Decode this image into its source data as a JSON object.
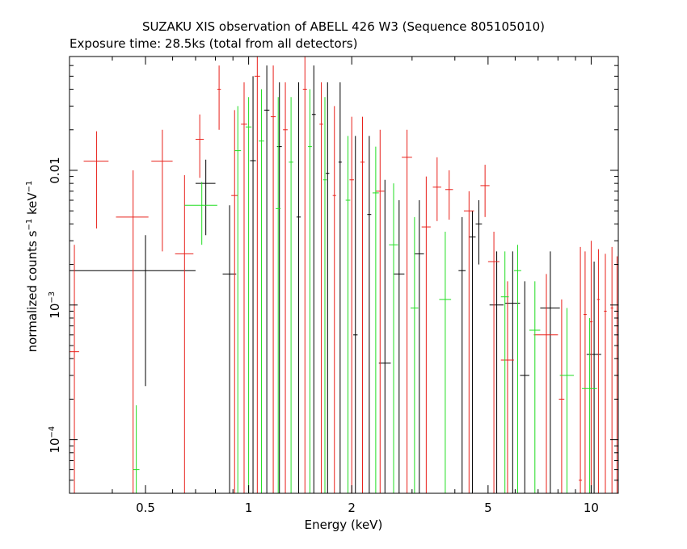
{
  "chart_data": {
    "type": "scatter",
    "title": "SUZAKU XIS observation of ABELL 426 W3 (Sequence 805105010)",
    "subtitle": "Exposure time: 28.5ks (total from all detectors)",
    "xlabel": "Energy (keV)",
    "ylabel_main": "normalized counts s",
    "ylabel_exp1": "−1",
    "ylabel_mid": " keV",
    "ylabel_exp2": "−1",
    "xscale": "log",
    "yscale": "log",
    "xlim": [
      0.3,
      12
    ],
    "ylim": [
      4e-05,
      0.07
    ],
    "grid": false,
    "x_ticks": [
      {
        "value": 0.5,
        "label": "0.5"
      },
      {
        "value": 1,
        "label": "1"
      },
      {
        "value": 2,
        "label": "2"
      },
      {
        "value": 5,
        "label": "5"
      },
      {
        "value": 10,
        "label": "10"
      }
    ],
    "y_ticks": [
      {
        "value": 0.0001,
        "base": "10",
        "exp": "−4"
      },
      {
        "value": 0.001,
        "base": "10",
        "exp": "−3"
      },
      {
        "value": 0.01,
        "base": "0.01",
        "exp": ""
      }
    ],
    "series": [
      {
        "color": "#000000",
        "points": [
          {
            "x": 0.5,
            "xlo": 0.3,
            "xhi": 0.7,
            "y": 0.0018,
            "ylo": 0.00025,
            "yhi": 0.0033
          },
          {
            "x": 0.75,
            "xlo": 0.7,
            "xhi": 0.8,
            "y": 0.008,
            "ylo": 0.0033,
            "yhi": 0.012
          },
          {
            "x": 0.88,
            "xlo": 0.84,
            "xhi": 0.92,
            "y": 0.0017,
            "ylo": 4e-05,
            "yhi": 0.0055
          },
          {
            "x": 1.03,
            "xlo": 1.01,
            "xhi": 1.05,
            "y": 0.0118,
            "ylo": 4e-05,
            "yhi": 0.05
          },
          {
            "x": 1.13,
            "xlo": 1.11,
            "xhi": 1.15,
            "y": 0.028,
            "ylo": 4e-05,
            "yhi": 0.06
          },
          {
            "x": 1.23,
            "xlo": 1.21,
            "xhi": 1.25,
            "y": 0.015,
            "ylo": 4e-05,
            "yhi": 0.045
          },
          {
            "x": 1.4,
            "xlo": 1.38,
            "xhi": 1.42,
            "y": 0.0045,
            "ylo": 4e-05,
            "yhi": 0.045
          },
          {
            "x": 1.55,
            "xlo": 1.53,
            "xhi": 1.57,
            "y": 0.026,
            "ylo": 4e-05,
            "yhi": 0.06
          },
          {
            "x": 1.7,
            "xlo": 1.68,
            "xhi": 1.72,
            "y": 0.0095,
            "ylo": 4e-05,
            "yhi": 0.045
          },
          {
            "x": 1.85,
            "xlo": 1.83,
            "xhi": 1.87,
            "y": 0.0115,
            "ylo": 4e-05,
            "yhi": 0.045
          },
          {
            "x": 2.05,
            "xlo": 2.02,
            "xhi": 2.08,
            "y": 0.0006,
            "ylo": 4e-05,
            "yhi": 0.018
          },
          {
            "x": 2.25,
            "xlo": 2.22,
            "xhi": 2.28,
            "y": 0.0047,
            "ylo": 4e-05,
            "yhi": 0.018
          },
          {
            "x": 2.5,
            "xlo": 2.4,
            "xhi": 2.6,
            "y": 0.00037,
            "ylo": 4e-05,
            "yhi": 0.0085
          },
          {
            "x": 2.75,
            "xlo": 2.65,
            "xhi": 2.85,
            "y": 0.0017,
            "ylo": 4e-05,
            "yhi": 0.006
          },
          {
            "x": 3.15,
            "xlo": 3.05,
            "xhi": 3.25,
            "y": 0.0024,
            "ylo": 4e-05,
            "yhi": 0.006
          },
          {
            "x": 4.2,
            "xlo": 4.1,
            "xhi": 4.3,
            "y": 0.0018,
            "ylo": 4e-05,
            "yhi": 0.0045
          },
          {
            "x": 4.5,
            "xlo": 4.4,
            "xhi": 4.6,
            "y": 0.0032,
            "ylo": 4e-05,
            "yhi": 0.005
          },
          {
            "x": 4.7,
            "xlo": 4.6,
            "xhi": 4.8,
            "y": 0.004,
            "ylo": 0.002,
            "yhi": 0.006
          },
          {
            "x": 5.3,
            "xlo": 5.05,
            "xhi": 5.55,
            "y": 0.001,
            "ylo": 4e-05,
            "yhi": 0.0025
          },
          {
            "x": 5.9,
            "xlo": 5.6,
            "xhi": 6.2,
            "y": 0.00103,
            "ylo": 4e-05,
            "yhi": 0.0025
          },
          {
            "x": 6.4,
            "xlo": 6.2,
            "xhi": 6.6,
            "y": 0.0003,
            "ylo": 4e-05,
            "yhi": 0.0015
          },
          {
            "x": 7.6,
            "xlo": 7.1,
            "xhi": 8.1,
            "y": 0.00095,
            "ylo": 4e-05,
            "yhi": 0.0025
          },
          {
            "x": 10.2,
            "xlo": 9.7,
            "xhi": 10.7,
            "y": 0.00043,
            "ylo": 4e-05,
            "yhi": 0.0021
          }
        ]
      },
      {
        "color": "#e8201a",
        "points": [
          {
            "x": 0.31,
            "xlo": 0.3,
            "xhi": 0.32,
            "y": 0.00045,
            "ylo": 4e-05,
            "yhi": 0.0028
          },
          {
            "x": 0.36,
            "xlo": 0.33,
            "xhi": 0.39,
            "y": 0.0117,
            "ylo": 0.0037,
            "yhi": 0.0195
          },
          {
            "x": 0.46,
            "xlo": 0.41,
            "xhi": 0.51,
            "y": 0.0045,
            "ylo": 4e-05,
            "yhi": 0.01
          },
          {
            "x": 0.56,
            "xlo": 0.52,
            "xhi": 0.6,
            "y": 0.0117,
            "ylo": 0.0025,
            "yhi": 0.02
          },
          {
            "x": 0.65,
            "xlo": 0.61,
            "xhi": 0.69,
            "y": 0.0024,
            "ylo": 4e-05,
            "yhi": 0.0092
          },
          {
            "x": 0.72,
            "xlo": 0.7,
            "xhi": 0.74,
            "y": 0.017,
            "ylo": 0.0088,
            "yhi": 0.026
          },
          {
            "x": 0.82,
            "xlo": 0.81,
            "xhi": 0.83,
            "y": 0.04,
            "ylo": 0.02,
            "yhi": 0.06
          },
          {
            "x": 0.91,
            "xlo": 0.89,
            "xhi": 0.93,
            "y": 0.0065,
            "ylo": 4e-05,
            "yhi": 0.028
          },
          {
            "x": 0.97,
            "xlo": 0.95,
            "xhi": 0.99,
            "y": 0.022,
            "ylo": 4e-05,
            "yhi": 0.045
          },
          {
            "x": 1.06,
            "xlo": 1.04,
            "xhi": 1.08,
            "y": 0.05,
            "ylo": 4e-05,
            "yhi": 0.07
          },
          {
            "x": 1.18,
            "xlo": 1.16,
            "xhi": 1.2,
            "y": 0.025,
            "ylo": 4e-05,
            "yhi": 0.06
          },
          {
            "x": 1.28,
            "xlo": 1.26,
            "xhi": 1.3,
            "y": 0.02,
            "ylo": 4e-05,
            "yhi": 0.045
          },
          {
            "x": 1.46,
            "xlo": 1.44,
            "xhi": 1.48,
            "y": 0.04,
            "ylo": 4e-05,
            "yhi": 0.07
          },
          {
            "x": 1.63,
            "xlo": 1.61,
            "xhi": 1.65,
            "y": 0.022,
            "ylo": 4e-05,
            "yhi": 0.045
          },
          {
            "x": 1.78,
            "xlo": 1.76,
            "xhi": 1.8,
            "y": 0.0065,
            "ylo": 4e-05,
            "yhi": 0.03
          },
          {
            "x": 2.0,
            "xlo": 1.97,
            "xhi": 2.03,
            "y": 0.0085,
            "ylo": 4e-05,
            "yhi": 0.025
          },
          {
            "x": 2.15,
            "xlo": 2.12,
            "xhi": 2.18,
            "y": 0.0115,
            "ylo": 4e-05,
            "yhi": 0.025
          },
          {
            "x": 2.42,
            "xlo": 2.35,
            "xhi": 2.49,
            "y": 0.007,
            "ylo": 4e-05,
            "yhi": 0.02
          },
          {
            "x": 2.9,
            "xlo": 2.8,
            "xhi": 3.0,
            "y": 0.0125,
            "ylo": 4e-05,
            "yhi": 0.02
          },
          {
            "x": 3.3,
            "xlo": 3.2,
            "xhi": 3.4,
            "y": 0.0038,
            "ylo": 4e-05,
            "yhi": 0.009
          },
          {
            "x": 3.55,
            "xlo": 3.45,
            "xhi": 3.65,
            "y": 0.0075,
            "ylo": 0.0042,
            "yhi": 0.0125
          },
          {
            "x": 3.85,
            "xlo": 3.75,
            "xhi": 3.95,
            "y": 0.0072,
            "ylo": 0.0043,
            "yhi": 0.01
          },
          {
            "x": 4.4,
            "xlo": 4.25,
            "xhi": 4.55,
            "y": 0.005,
            "ylo": 4e-05,
            "yhi": 0.007
          },
          {
            "x": 4.9,
            "xlo": 4.75,
            "xhi": 5.05,
            "y": 0.0077,
            "ylo": 0.0045,
            "yhi": 0.011
          },
          {
            "x": 5.2,
            "xlo": 5.0,
            "xhi": 5.4,
            "y": 0.0021,
            "ylo": 4e-05,
            "yhi": 0.0035
          },
          {
            "x": 5.7,
            "xlo": 5.45,
            "xhi": 5.95,
            "y": 0.00039,
            "ylo": 4e-05,
            "yhi": 0.0015
          },
          {
            "x": 7.4,
            "xlo": 6.8,
            "xhi": 8.0,
            "y": 0.0006,
            "ylo": 4e-05,
            "yhi": 0.0017
          },
          {
            "x": 8.2,
            "xlo": 8.05,
            "xhi": 8.35,
            "y": 0.0002,
            "ylo": 4e-05,
            "yhi": 0.0011
          },
          {
            "x": 9.3,
            "xlo": 9.2,
            "xhi": 9.4,
            "y": 5e-05,
            "ylo": 4e-05,
            "yhi": 0.0027
          },
          {
            "x": 9.6,
            "xlo": 9.5,
            "xhi": 9.7,
            "y": 0.00085,
            "ylo": 4e-05,
            "yhi": 0.0025
          },
          {
            "x": 10.0,
            "xlo": 9.9,
            "xhi": 10.1,
            "y": 0.00075,
            "ylo": 4e-05,
            "yhi": 0.003
          },
          {
            "x": 10.5,
            "xlo": 10.4,
            "xhi": 10.6,
            "y": 0.0011,
            "ylo": 4e-05,
            "yhi": 0.0026
          },
          {
            "x": 11.0,
            "xlo": 10.9,
            "xhi": 11.1,
            "y": 0.0009,
            "ylo": 4e-05,
            "yhi": 0.0024
          },
          {
            "x": 11.5,
            "xlo": 11.4,
            "xhi": 11.6,
            "y": 0.00095,
            "ylo": 4e-05,
            "yhi": 0.0027
          },
          {
            "x": 11.9,
            "xlo": 11.85,
            "xhi": 11.95,
            "y": 0.0007,
            "ylo": 4e-05,
            "yhi": 0.0023
          }
        ]
      },
      {
        "color": "#22dd22",
        "points": [
          {
            "x": 0.47,
            "xlo": 0.46,
            "xhi": 0.48,
            "y": 6e-05,
            "ylo": 4e-05,
            "yhi": 0.00018
          },
          {
            "x": 0.73,
            "xlo": 0.65,
            "xhi": 0.81,
            "y": 0.0055,
            "ylo": 0.0028,
            "yhi": 0.0082
          },
          {
            "x": 0.93,
            "xlo": 0.91,
            "xhi": 0.95,
            "y": 0.014,
            "ylo": 4e-05,
            "yhi": 0.03
          },
          {
            "x": 1.0,
            "xlo": 0.98,
            "xhi": 1.02,
            "y": 0.021,
            "ylo": 4e-05,
            "yhi": 0.035
          },
          {
            "x": 1.09,
            "xlo": 1.07,
            "xhi": 1.11,
            "y": 0.0165,
            "ylo": 4e-05,
            "yhi": 0.04
          },
          {
            "x": 1.22,
            "xlo": 1.2,
            "xhi": 1.24,
            "y": 0.0052,
            "ylo": 4e-05,
            "yhi": 0.035
          },
          {
            "x": 1.33,
            "xlo": 1.31,
            "xhi": 1.35,
            "y": 0.0115,
            "ylo": 4e-05,
            "yhi": 0.035
          },
          {
            "x": 1.51,
            "xlo": 1.49,
            "xhi": 1.53,
            "y": 0.015,
            "ylo": 4e-05,
            "yhi": 0.04
          },
          {
            "x": 1.67,
            "xlo": 1.65,
            "xhi": 1.69,
            "y": 0.0085,
            "ylo": 4e-05,
            "yhi": 0.035
          },
          {
            "x": 1.95,
            "xlo": 1.92,
            "xhi": 1.98,
            "y": 0.006,
            "ylo": 4e-05,
            "yhi": 0.018
          },
          {
            "x": 2.35,
            "xlo": 2.3,
            "xhi": 2.4,
            "y": 0.0068,
            "ylo": 4e-05,
            "yhi": 0.015
          },
          {
            "x": 2.65,
            "xlo": 2.57,
            "xhi": 2.73,
            "y": 0.0028,
            "ylo": 4e-05,
            "yhi": 0.008
          },
          {
            "x": 3.05,
            "xlo": 2.97,
            "xhi": 3.13,
            "y": 0.00095,
            "ylo": 4e-05,
            "yhi": 0.0045
          },
          {
            "x": 3.75,
            "xlo": 3.6,
            "xhi": 3.9,
            "y": 0.0011,
            "ylo": 4e-05,
            "yhi": 0.0035
          },
          {
            "x": 5.6,
            "xlo": 5.45,
            "xhi": 5.75,
            "y": 0.00115,
            "ylo": 4e-05,
            "yhi": 0.0025
          },
          {
            "x": 6.1,
            "xlo": 5.95,
            "xhi": 6.25,
            "y": 0.0018,
            "ylo": 4e-05,
            "yhi": 0.0028
          },
          {
            "x": 6.85,
            "xlo": 6.6,
            "xhi": 7.1,
            "y": 0.00065,
            "ylo": 4e-05,
            "yhi": 0.0015
          },
          {
            "x": 8.5,
            "xlo": 8.1,
            "xhi": 8.9,
            "y": 0.0003,
            "ylo": 4e-05,
            "yhi": 0.00095
          },
          {
            "x": 9.9,
            "xlo": 9.4,
            "xhi": 10.4,
            "y": 0.00024,
            "ylo": 4e-05,
            "yhi": 0.0008
          }
        ]
      }
    ]
  }
}
